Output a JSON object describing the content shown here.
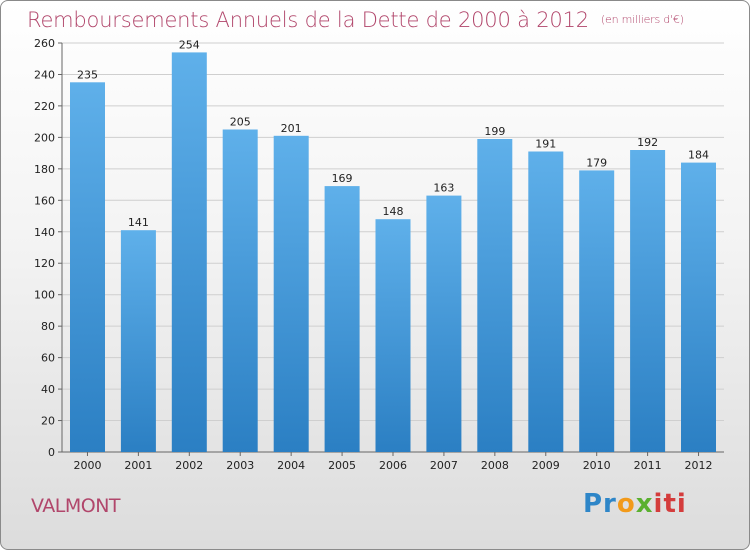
{
  "title": "Remboursements Annuels de la Dette de 2000 à 2012",
  "unit": "(en milliers d'€)",
  "commune": "VALMONT",
  "logo": {
    "p1": "Pr",
    "p2": "o",
    "p3": "x",
    "p4": "iti"
  },
  "colors": {
    "bar_top": "#5fb0ea",
    "bar_bottom": "#2b7fc3",
    "title": "#b1466b",
    "grid": "#cfcfcf"
  },
  "chart_data": {
    "type": "bar",
    "categories": [
      "2000",
      "2001",
      "2002",
      "2003",
      "2004",
      "2005",
      "2006",
      "2007",
      "2008",
      "2009",
      "2010",
      "2011",
      "2012"
    ],
    "values": [
      235,
      141,
      254,
      205,
      201,
      169,
      148,
      163,
      199,
      191,
      179,
      192,
      184
    ],
    "ylim": [
      0,
      260
    ],
    "yticks": [
      0,
      20,
      40,
      60,
      80,
      100,
      120,
      140,
      160,
      180,
      200,
      220,
      240,
      260
    ],
    "grid": true,
    "xlabel": "",
    "ylabel": ""
  }
}
